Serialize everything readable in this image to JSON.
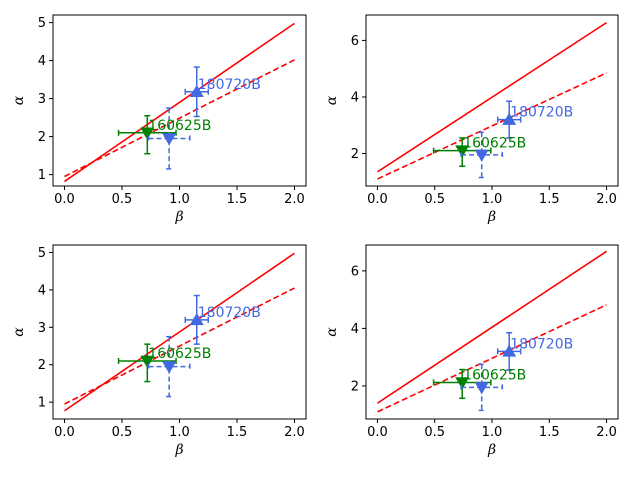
{
  "chart_data": [
    {
      "type": "line",
      "xlabel": "β",
      "ylabel": "α",
      "xlim": [
        -0.1,
        2.1
      ],
      "ylim": [
        0.7,
        5.2
      ],
      "xticks": [
        0.0,
        0.5,
        1.0,
        1.5,
        2.0
      ],
      "xtick_labels": [
        "0.0",
        "0.5",
        "1.0",
        "1.5",
        "2.0"
      ],
      "yticks": [
        1,
        2,
        3,
        4,
        5
      ],
      "ytick_labels": [
        "1",
        "2",
        "3",
        "4",
        "5"
      ],
      "grid": false,
      "lines": [
        {
          "name": "solid-fit",
          "style": "solid",
          "color": "#ff0000",
          "x": [
            0,
            2
          ],
          "y": [
            0.82,
            4.98
          ]
        },
        {
          "name": "dashed-fit",
          "style": "dashed",
          "color": "#ff0000",
          "x": [
            0,
            2
          ],
          "y": [
            0.95,
            4.02
          ]
        }
      ],
      "points": [
        {
          "name": "180720B",
          "label": "180720B",
          "marker": "triangle-up",
          "color": "#4169e1",
          "err_style": "solid",
          "x": 1.15,
          "y": 3.18,
          "xerr": 0.1,
          "yerr": [
            0.65,
            0.65
          ]
        },
        {
          "name": "160625B",
          "label": "160625B",
          "marker": "triangle-down",
          "color": "#008000",
          "err_style": "solid",
          "x": 0.72,
          "y": 2.1,
          "xerr": 0.25,
          "yerr": [
            0.55,
            0.45
          ]
        },
        {
          "name": "blue-dashed",
          "label": "",
          "marker": "triangle-down",
          "color": "#4169e1",
          "err_style": "dashed",
          "x": 0.91,
          "y": 1.95,
          "xerr": 0.18,
          "yerr": [
            0.8,
            0.8
          ]
        }
      ]
    },
    {
      "type": "line",
      "xlabel": "β",
      "ylabel": "α",
      "xlim": [
        -0.1,
        2.1
      ],
      "ylim": [
        0.85,
        6.9
      ],
      "xticks": [
        0.0,
        0.5,
        1.0,
        1.5,
        2.0
      ],
      "xtick_labels": [
        "0.0",
        "0.5",
        "1.0",
        "1.5",
        "2.0"
      ],
      "yticks": [
        2,
        4,
        6
      ],
      "ytick_labels": [
        "2",
        "4",
        "6"
      ],
      "grid": false,
      "lines": [
        {
          "name": "solid-fit",
          "style": "solid",
          "color": "#ff0000",
          "x": [
            0,
            2
          ],
          "y": [
            1.35,
            6.63
          ]
        },
        {
          "name": "dashed-fit",
          "style": "dashed",
          "color": "#ff0000",
          "x": [
            0,
            2
          ],
          "y": [
            1.1,
            4.85
          ]
        }
      ],
      "points": [
        {
          "name": "180720B",
          "label": "180720B",
          "marker": "triangle-up",
          "color": "#4169e1",
          "err_style": "solid",
          "x": 1.15,
          "y": 3.2,
          "xerr": 0.1,
          "yerr": [
            0.65,
            0.65
          ]
        },
        {
          "name": "160625B",
          "label": "160625B",
          "marker": "triangle-down",
          "color": "#008000",
          "err_style": "solid",
          "x": 0.74,
          "y": 2.1,
          "xerr": 0.25,
          "yerr": [
            0.55,
            0.45
          ]
        },
        {
          "name": "blue-dashed",
          "label": "",
          "marker": "triangle-down",
          "color": "#4169e1",
          "err_style": "dashed",
          "x": 0.91,
          "y": 1.95,
          "xerr": 0.18,
          "yerr": [
            0.8,
            0.8
          ]
        }
      ]
    },
    {
      "type": "line",
      "xlabel": "β",
      "ylabel": "α",
      "xlim": [
        -0.1,
        2.1
      ],
      "ylim": [
        0.55,
        5.2
      ],
      "xticks": [
        0.0,
        0.5,
        1.0,
        1.5,
        2.0
      ],
      "xtick_labels": [
        "0.0",
        "0.5",
        "1.0",
        "1.5",
        "2.0"
      ],
      "yticks": [
        1,
        2,
        3,
        4,
        5
      ],
      "ytick_labels": [
        "1",
        "2",
        "3",
        "4",
        "5"
      ],
      "grid": false,
      "lines": [
        {
          "name": "solid-fit",
          "style": "solid",
          "color": "#ff0000",
          "x": [
            0,
            2
          ],
          "y": [
            0.77,
            4.98
          ]
        },
        {
          "name": "dashed-fit",
          "style": "dashed",
          "color": "#ff0000",
          "x": [
            0,
            2
          ],
          "y": [
            0.95,
            4.05
          ]
        }
      ],
      "points": [
        {
          "name": "180720B",
          "label": "180720B",
          "marker": "triangle-up",
          "color": "#4169e1",
          "err_style": "solid",
          "x": 1.15,
          "y": 3.2,
          "xerr": 0.1,
          "yerr": [
            0.65,
            0.65
          ]
        },
        {
          "name": "160625B",
          "label": "160625B",
          "marker": "triangle-down",
          "color": "#008000",
          "err_style": "solid",
          "x": 0.72,
          "y": 2.1,
          "xerr": 0.25,
          "yerr": [
            0.55,
            0.45
          ]
        },
        {
          "name": "blue-dashed",
          "label": "",
          "marker": "triangle-down",
          "color": "#4169e1",
          "err_style": "dashed",
          "x": 0.91,
          "y": 1.95,
          "xerr": 0.18,
          "yerr": [
            0.8,
            0.8
          ]
        }
      ]
    },
    {
      "type": "line",
      "xlabel": "β",
      "ylabel": "α",
      "xlim": [
        -0.1,
        2.1
      ],
      "ylim": [
        0.85,
        6.9
      ],
      "xticks": [
        0.0,
        0.5,
        1.0,
        1.5,
        2.0
      ],
      "xtick_labels": [
        "0.0",
        "0.5",
        "1.0",
        "1.5",
        "2.0"
      ],
      "yticks": [
        2,
        4,
        6
      ],
      "ytick_labels": [
        "2",
        "4",
        "6"
      ],
      "grid": false,
      "lines": [
        {
          "name": "solid-fit",
          "style": "solid",
          "color": "#ff0000",
          "x": [
            0,
            2
          ],
          "y": [
            1.4,
            6.68
          ]
        },
        {
          "name": "dashed-fit",
          "style": "dashed",
          "color": "#ff0000",
          "x": [
            0,
            2
          ],
          "y": [
            1.1,
            4.82
          ]
        }
      ],
      "points": [
        {
          "name": "180720B",
          "label": "180720B",
          "marker": "triangle-up",
          "color": "#4169e1",
          "err_style": "solid",
          "x": 1.15,
          "y": 3.2,
          "xerr": 0.1,
          "yerr": [
            0.65,
            0.65
          ]
        },
        {
          "name": "160625B",
          "label": "160625B",
          "marker": "triangle-down",
          "color": "#008000",
          "err_style": "solid",
          "x": 0.74,
          "y": 2.12,
          "xerr": 0.25,
          "yerr": [
            0.55,
            0.45
          ]
        },
        {
          "name": "blue-dashed",
          "label": "",
          "marker": "triangle-down",
          "color": "#4169e1",
          "err_style": "dashed",
          "x": 0.91,
          "y": 1.95,
          "xerr": 0.18,
          "yerr": [
            0.8,
            0.8
          ]
        }
      ]
    }
  ]
}
